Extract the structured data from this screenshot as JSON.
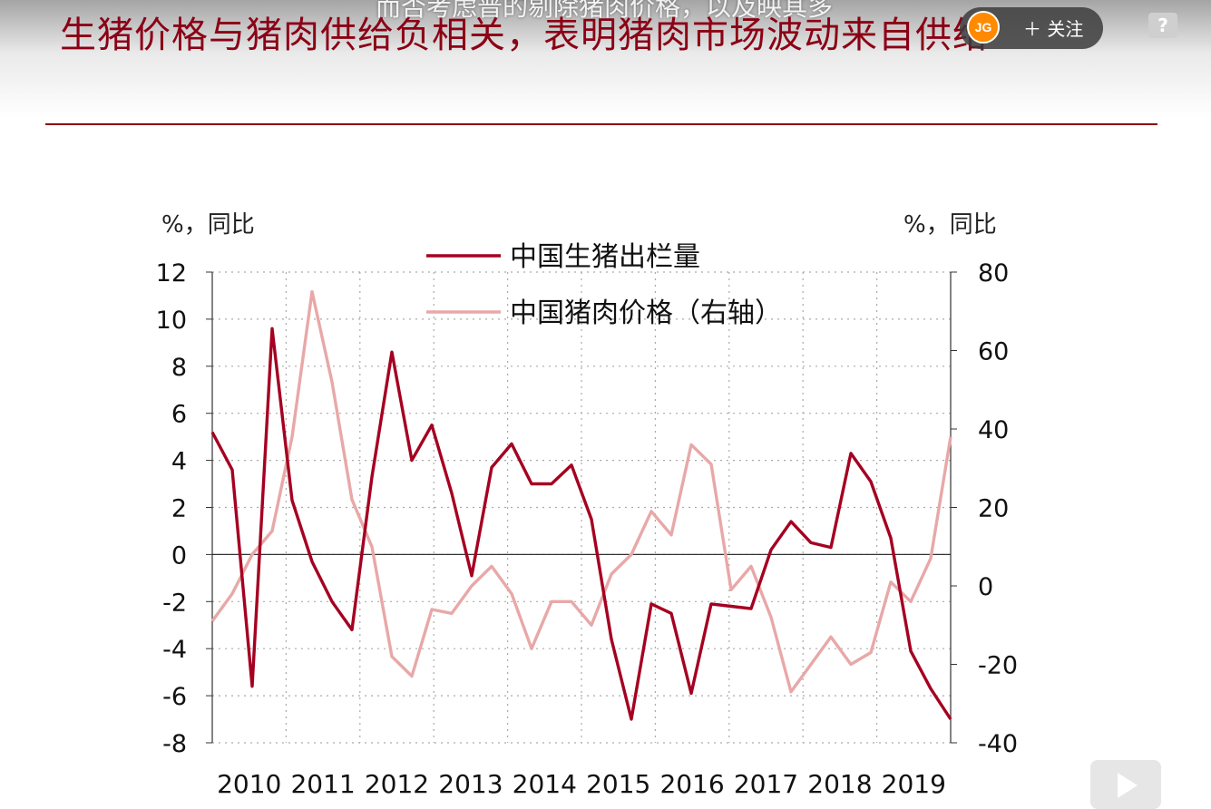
{
  "slide": {
    "title": "生猪价格与猪肉供给负相关，表明猪肉市场波动来自供给",
    "overlay_subtitle": "而否考虑普的剔除猪肉价格，以及映其多"
  },
  "player": {
    "follow_label": "关注",
    "avatar_text": "JG",
    "help_label": "?"
  },
  "chart_data": {
    "type": "line",
    "left_unit_label": "%，同比",
    "right_unit_label": "%，同比",
    "x_tick_labels": [
      "2010",
      "2011",
      "2012",
      "2013",
      "2014",
      "2015",
      "2016",
      "2017",
      "2018",
      "2019"
    ],
    "y_left": {
      "min": -8,
      "max": 12,
      "ticks": [
        12,
        10,
        8,
        6,
        4,
        2,
        0,
        -2,
        -4,
        -6,
        -8
      ]
    },
    "y_right": {
      "min": -40,
      "max": 80,
      "ticks": [
        80,
        60,
        40,
        20,
        0,
        -20,
        -40
      ]
    },
    "grid": true,
    "legend_placement": "top-center",
    "series": [
      {
        "name": "中国生猪出栏量",
        "axis": "left",
        "color": "#a50021",
        "values": [
          5.2,
          3.6,
          -5.6,
          9.6,
          2.3,
          -0.3,
          -2.0,
          -3.2,
          3.3,
          8.6,
          4.0,
          5.5,
          2.6,
          -0.9,
          3.7,
          4.7,
          3.0,
          3.0,
          3.8,
          1.5,
          -3.6,
          -7.0,
          -2.1,
          -2.5,
          -5.9,
          -2.1,
          -2.2,
          -2.3,
          0.2,
          1.4,
          0.5,
          0.3,
          4.3,
          3.1,
          0.7,
          -4.1,
          -5.7,
          -7.0
        ]
      },
      {
        "name": "中国猪肉价格（右轴）",
        "axis": "right",
        "color": "#e8a8a8",
        "values": [
          -9,
          -2,
          8,
          14,
          38,
          75,
          52,
          22,
          10,
          -18,
          -23,
          -6,
          -7,
          0,
          5,
          -2,
          -16,
          -4,
          -4,
          -10,
          3,
          8,
          19,
          13,
          36,
          31,
          -1,
          5,
          -8,
          -27,
          -20,
          -13,
          -20,
          -17,
          1,
          -4,
          7,
          38
        ]
      }
    ]
  }
}
